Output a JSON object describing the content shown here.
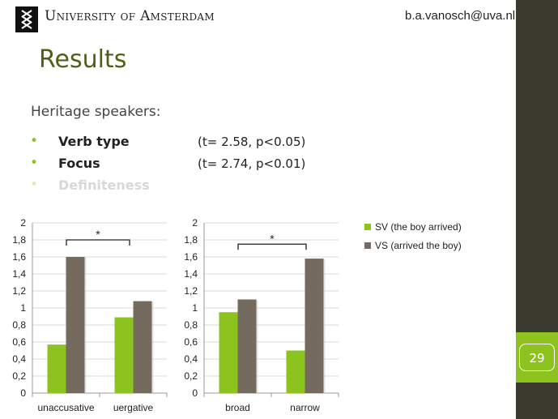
{
  "header": {
    "university": "University of Amsterdam",
    "email": "b.a.vanosch@uva.nl"
  },
  "slide": {
    "title": "Results",
    "subtitle": "Heritage speakers:",
    "page_number": "29",
    "bullets": [
      {
        "label": "Verb type",
        "stat": "(t= 2.58, p<0.05)",
        "dimmed": false
      },
      {
        "label": "Focus",
        "stat": "(t= 2.74, p<0.01)",
        "dimmed": false
      },
      {
        "label": "Definiteness",
        "stat": "",
        "dimmed": true
      }
    ]
  },
  "colors": {
    "sv": "#8dc31e",
    "vs": "#746a5e",
    "band": "#3a3a2e",
    "title": "#4f5f1a"
  },
  "legend": {
    "sv": "SV (the boy arrived)",
    "vs": "VS (arrived the boy)"
  },
  "chart_data": [
    {
      "type": "bar",
      "categories": [
        "unaccusative",
        "uergative"
      ],
      "series": [
        {
          "name": "SV (the boy arrived)",
          "values": [
            0.57,
            0.89
          ]
        },
        {
          "name": "VS (arrived the boy)",
          "values": [
            1.6,
            1.08
          ]
        }
      ],
      "ylim": [
        0,
        2
      ],
      "yticks": [
        "0",
        "0,2",
        "0,4",
        "0,6",
        "0,8",
        "1",
        "1,2",
        "1,4",
        "1,6",
        "1,8",
        "2"
      ],
      "grid": true,
      "annotation": "*"
    },
    {
      "type": "bar",
      "categories": [
        "broad",
        "narrow"
      ],
      "series": [
        {
          "name": "SV (the boy arrived)",
          "values": [
            0.95,
            0.5
          ]
        },
        {
          "name": "VS (arrived the boy)",
          "values": [
            1.1,
            1.58
          ]
        }
      ],
      "ylim": [
        0,
        2
      ],
      "yticks": [
        "0",
        "0,2",
        "0,4",
        "0,6",
        "0,8",
        "1",
        "1,2",
        "1,4",
        "1,6",
        "1,8",
        "2"
      ],
      "grid": true,
      "annotation": "*"
    }
  ]
}
